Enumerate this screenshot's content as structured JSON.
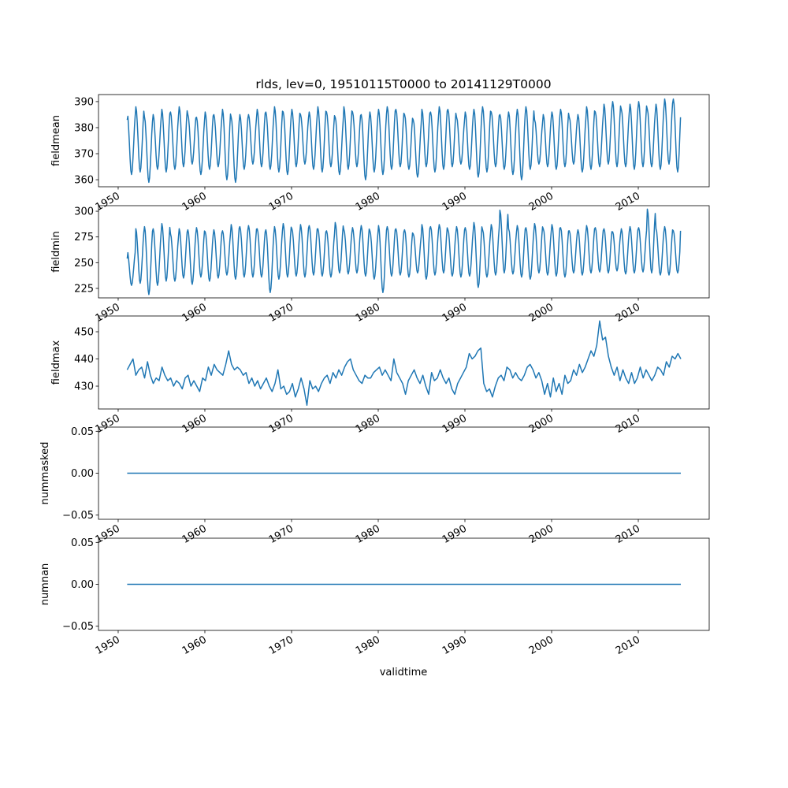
{
  "chart_data": {
    "type": "line",
    "title": "rlds, lev=0, 19510115T0000 to 20141129T0000",
    "xlabel": "validtime",
    "xlim": [
      1947.73,
      2018.18
    ],
    "x_ticks": [
      1950,
      1960,
      1970,
      1980,
      1990,
      2000,
      2010
    ],
    "x_tick_labels": [
      "1950",
      "1960",
      "1970",
      "1980",
      "1990",
      "2000",
      "2010"
    ],
    "start": 1951.04,
    "end": 2014.91,
    "line_color": "#1f77b4",
    "panels": [
      {
        "ylabel": "fieldmean",
        "ylim": [
          357.3,
          392.7
        ],
        "y_ticks": [
          360,
          370,
          380,
          390
        ],
        "y_tick_labels": [
          "360",
          "370",
          "380",
          "390"
        ],
        "representation": "annual_cycle",
        "first_value": 383,
        "last_value": 384,
        "annual_max": [
          386,
          388,
          384,
          385,
          387,
          386,
          388,
          385,
          384,
          386,
          385,
          387,
          384,
          385,
          385,
          387,
          386,
          388,
          386,
          387,
          385,
          386,
          388,
          386,
          384,
          388,
          386,
          385,
          386,
          387,
          388,
          387,
          385,
          383,
          387,
          386,
          388,
          387,
          384,
          386,
          387,
          388,
          386,
          385,
          386,
          387,
          388,
          383,
          385,
          386,
          387,
          384,
          385,
          388,
          386,
          389,
          390,
          387,
          389,
          390,
          387,
          389,
          391,
          391
        ],
        "annual_min": [
          362,
          363,
          359,
          364,
          363,
          364,
          365,
          366,
          362,
          364,
          365,
          360,
          359,
          364,
          366,
          365,
          364,
          363,
          362,
          365,
          366,
          364,
          363,
          365,
          362,
          364,
          365,
          360,
          363,
          362,
          364,
          365,
          364,
          361,
          365,
          363,
          364,
          365,
          366,
          364,
          361,
          363,
          365,
          364,
          362,
          360,
          364,
          366,
          365,
          364,
          365,
          366,
          363,
          364,
          365,
          366,
          365,
          365,
          364,
          365,
          365,
          364,
          366,
          363
        ]
      },
      {
        "ylabel": "fieldmin",
        "ylim": [
          215.8,
          305.4
        ],
        "y_ticks": [
          225,
          250,
          275,
          300
        ],
        "y_tick_labels": [
          "225",
          "250",
          "275",
          "300"
        ],
        "representation": "annual_cycle",
        "first_value": 254,
        "last_value": 281,
        "annual_max": [
          262,
          283,
          285,
          283,
          288,
          278,
          283,
          282,
          284,
          280,
          282,
          281,
          287,
          285,
          286,
          283,
          282,
          285,
          288,
          283,
          287,
          286,
          283,
          281,
          289,
          282,
          284,
          286,
          281,
          286,
          285,
          283,
          282,
          278,
          287,
          285,
          287,
          282,
          285,
          284,
          289,
          282,
          287,
          301,
          283,
          286,
          284,
          288,
          283,
          287,
          284,
          281,
          282,
          286,
          284,
          283,
          280,
          283,
          285,
          284,
          302,
          283,
          285,
          281
        ],
        "annual_min": [
          228,
          230,
          219,
          228,
          232,
          232,
          235,
          229,
          236,
          232,
          235,
          238,
          234,
          236,
          236,
          236,
          221,
          234,
          236,
          237,
          236,
          238,
          237,
          236,
          240,
          239,
          240,
          237,
          234,
          221,
          237,
          238,
          236,
          240,
          234,
          238,
          240,
          237,
          236,
          237,
          226,
          236,
          238,
          240,
          239,
          236,
          234,
          240,
          238,
          237,
          236,
          240,
          238,
          240,
          241,
          240,
          242,
          239,
          240,
          241,
          240,
          238,
          238,
          240
        ]
      },
      {
        "ylabel": "fieldmax",
        "ylim": [
          421.6,
          455.8
        ],
        "y_ticks": [
          430,
          440,
          450
        ],
        "y_tick_labels": [
          "430",
          "440",
          "450"
        ],
        "representation": "samples_per_year_3",
        "values": [
          436,
          438,
          440,
          434,
          436,
          437,
          433,
          439,
          434,
          431,
          433,
          432,
          437,
          434,
          432,
          433,
          430,
          432,
          431,
          429,
          433,
          434,
          430,
          432,
          430,
          428,
          433,
          432,
          437,
          434,
          438,
          436,
          435,
          434,
          438,
          443,
          438,
          436,
          437,
          436,
          434,
          435,
          431,
          433,
          430,
          432,
          429,
          431,
          433,
          430,
          428,
          431,
          436,
          429,
          430,
          427,
          428,
          431,
          426,
          429,
          433,
          429,
          423,
          432,
          429,
          430,
          428,
          431,
          433,
          434,
          431,
          435,
          433,
          436,
          434,
          437,
          439,
          440,
          436,
          434,
          432,
          431,
          434,
          433,
          433,
          435,
          436,
          437,
          434,
          436,
          434,
          432,
          440,
          435,
          433,
          431,
          427,
          432,
          434,
          436,
          433,
          431,
          434,
          430,
          427,
          435,
          432,
          433,
          436,
          433,
          431,
          433,
          429,
          427,
          431,
          433,
          435,
          437,
          442,
          440,
          441,
          443,
          444,
          431,
          428,
          429,
          426,
          430,
          433,
          434,
          432,
          437,
          436,
          433,
          435,
          433,
          432,
          434,
          437,
          438,
          436,
          433,
          435,
          432,
          427,
          431,
          426,
          433,
          428,
          431,
          427,
          434,
          431,
          432,
          436,
          434,
          438,
          435,
          437,
          440,
          443,
          441,
          445,
          454,
          447,
          448,
          441,
          437,
          434,
          437,
          432,
          436,
          433,
          431,
          435,
          431,
          433,
          437,
          433,
          436,
          434,
          432,
          434,
          437,
          436,
          434,
          439,
          437,
          441,
          440,
          442,
          440
        ]
      },
      {
        "ylabel": "nummasked",
        "ylim": [
          -0.055,
          0.055
        ],
        "y_ticks": [
          -0.05,
          0.0,
          0.05
        ],
        "y_tick_labels": [
          "−0.05",
          "0.00",
          "0.05"
        ],
        "representation": "constant",
        "value": 0.0
      },
      {
        "ylabel": "numnan",
        "ylim": [
          -0.055,
          0.055
        ],
        "y_ticks": [
          -0.05,
          0.0,
          0.05
        ],
        "y_tick_labels": [
          "−0.05",
          "0.00",
          "0.05"
        ],
        "representation": "constant",
        "value": 0.0
      }
    ]
  }
}
